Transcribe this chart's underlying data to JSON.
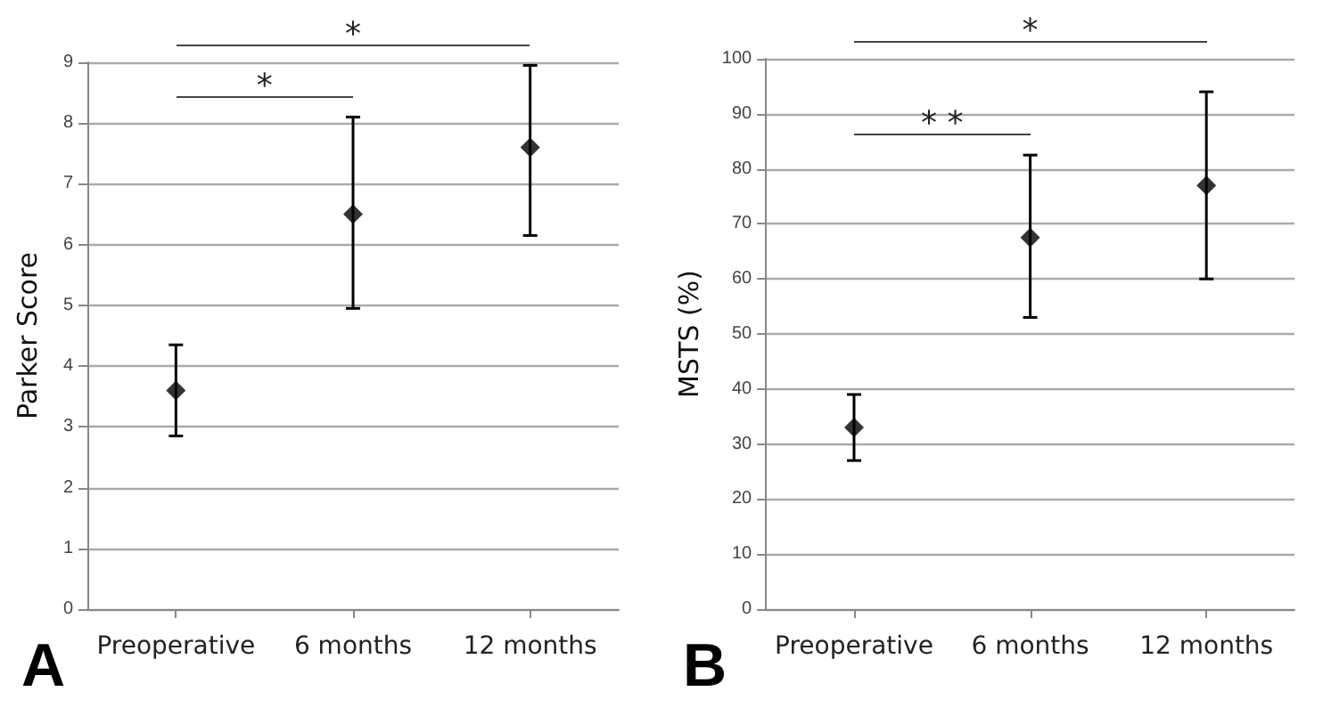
{
  "chart_data": [
    {
      "type": "scatter",
      "ylabel": "Parker Score",
      "categories": [
        "Preoperative",
        "6 months",
        "12 months"
      ],
      "series": [
        {
          "color": "#000000",
          "values": [
            3.6,
            6.5,
            7.6
          ],
          "errors": [
            [
              2.85,
              4.35
            ],
            [
              4.95,
              8.1
            ],
            [
              6.15,
              8.95
            ]
          ]
        }
      ],
      "ylim": [
        0,
        9
      ],
      "yticks": [
        0,
        1,
        2,
        3,
        4,
        5,
        6,
        7,
        8,
        9
      ],
      "grid": "y",
      "marker": "diamond",
      "annotations": [
        "*",
        "*",
        "A"
      ]
    },
    {
      "type": "scatter",
      "ylabel": "MSTS (%)",
      "categories": [
        "Preoperative",
        "6 months",
        "12 months"
      ],
      "series": [
        {
          "color": "#000000",
          "values": [
            33,
            67.5,
            77
          ],
          "errors": [
            [
              27,
              39
            ],
            [
              53,
              82.5
            ],
            [
              60,
              94
            ]
          ]
        }
      ],
      "ylim": [
        0,
        100
      ],
      "yticks": [
        0,
        10,
        20,
        30,
        40,
        50,
        60,
        70,
        80,
        90,
        100
      ],
      "grid": "y",
      "marker": "diamond",
      "annotations": [
        "*",
        "* *",
        "B"
      ]
    }
  ]
}
